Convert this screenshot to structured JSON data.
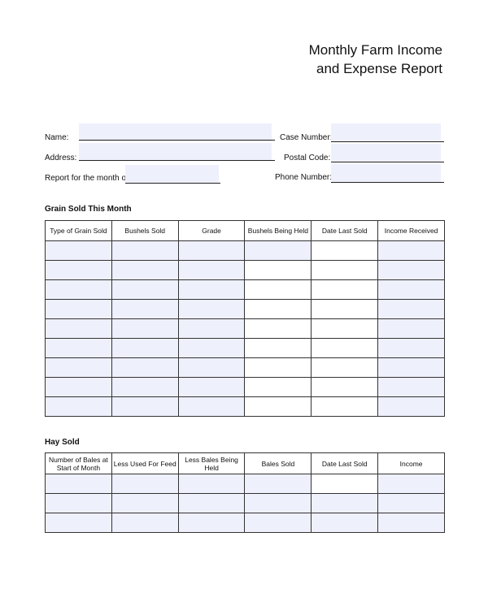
{
  "title_line1": "Monthly Farm Income",
  "title_line2": "and Expense Report",
  "fields": {
    "name": "Name:",
    "address": "Address:",
    "month": "Report for the month of",
    "case_number": "Case Number:",
    "postal_code": "Postal Code:",
    "phone_number": "Phone Number:"
  },
  "grain": {
    "heading": "Grain Sold This Month",
    "columns": [
      "Type of Grain Sold",
      "Bushels Sold",
      "Grade",
      "Bushels Being Held",
      "Date Last Sold",
      "Income Received"
    ],
    "row_count": 9
  },
  "hay": {
    "heading": "Hay Sold",
    "columns": [
      "Number of Bales at Start of Month",
      "Less Used For Feed",
      "Less Bales Being Held",
      "Bales Sold",
      "Date Last Sold",
      "Income"
    ],
    "row_count": 3
  },
  "colors": {
    "field_fill": "#eef0fc",
    "border": "#333333"
  }
}
